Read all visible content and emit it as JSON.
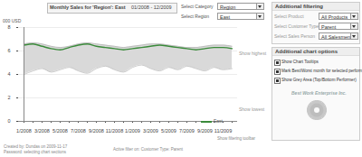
{
  "chart_data": {
    "type": "line",
    "x": [
      "1/2008",
      null,
      "3/2008",
      null,
      "5/2008",
      null,
      "7/2008",
      null,
      "9/2008",
      null,
      "11/2008",
      null,
      "1/2009",
      null,
      "3/2009",
      null,
      "5/2009",
      null,
      "7/2009",
      null,
      "9/2009",
      null,
      "11/2009",
      null
    ],
    "series": [
      {
        "name": "East",
        "color": "#3a8a3a",
        "values": [
          6.5,
          6.6,
          6.4,
          6.2,
          6.1,
          6.3,
          6.5,
          6.6,
          6.4,
          6.3,
          6.2,
          6.1,
          6.2,
          6.3,
          6.4,
          6.5,
          6.4,
          6.3,
          6.2,
          6.1,
          6.2,
          6.3,
          6.3,
          6.2
        ]
      }
    ],
    "grey_area": {
      "color": "#d9d9d9",
      "upper": [
        6.6,
        6.7,
        6.6,
        6.4,
        6.3,
        6.4,
        6.6,
        6.7,
        6.6,
        6.5,
        6.4,
        6.3,
        6.4,
        6.5,
        6.6,
        6.6,
        6.5,
        6.4,
        6.3,
        6.3,
        6.4,
        6.5,
        6.5,
        6.4
      ],
      "lower": [
        4.0,
        4.3,
        4.5,
        4.2,
        4.4,
        4.6,
        4.3,
        4.1,
        4.5,
        4.7,
        4.4,
        4.2,
        4.6,
        4.8,
        4.5,
        4.3,
        4.6,
        4.4,
        4.7,
        4.5,
        4.3,
        4.6,
        4.4,
        4.5
      ]
    },
    "y_label": "000 USD",
    "ylim": [
      0,
      8
    ],
    "yticks": [
      0,
      2,
      4,
      6,
      8
    ],
    "grid": true
  },
  "header": {
    "title": "Monthly Sales for 'Region': East",
    "period": "01/2008 - 12/2009"
  },
  "selectors": [
    {
      "label": "Select Category",
      "value": "Region"
    },
    {
      "label": "Select Region",
      "value": "East"
    }
  ],
  "chart_notes": [
    "Show highest",
    "Show lowest"
  ],
  "filter_panel": {
    "title": "Additional filtering",
    "selectors": [
      {
        "label": "Select Product",
        "value": "All Products"
      },
      {
        "label": "Select Customer Type",
        "value": "Parent"
      },
      {
        "label": "Select Sales Person",
        "value": "All Salesmen"
      }
    ]
  },
  "options_panel": {
    "title": "Additional chart options",
    "checkboxes": [
      {
        "label": "Show Chart Tooltips",
        "checked": true
      },
      {
        "label": "Mark Best/Worst month for selected performer",
        "checked": true
      },
      {
        "label": "Show Grey Area (Top/Bottom Performer)",
        "checked": true
      }
    ]
  },
  "logo": "Best Work Enterprise Inc.",
  "footer": {
    "left": [
      "Created by: Dundas on 2009-11-17",
      "Password: selecting chart sections"
    ],
    "center": "Active filter on: Customer Type: Parent",
    "right": "Show filtering toolbar"
  }
}
